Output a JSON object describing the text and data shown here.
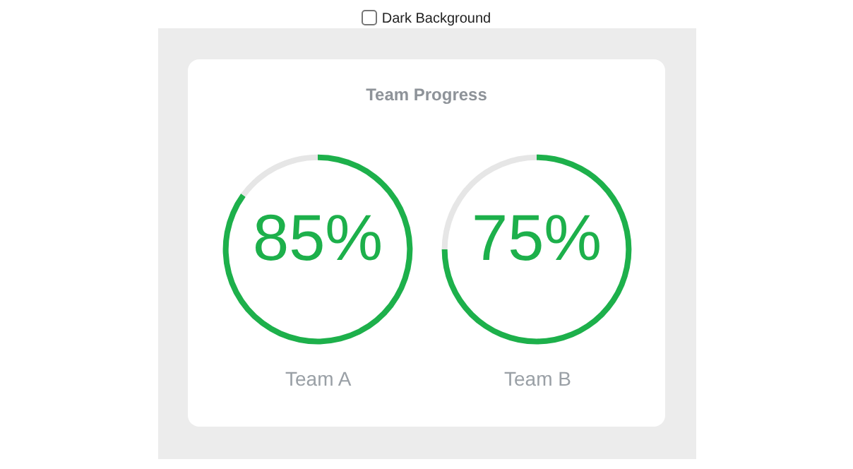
{
  "chart_data": [
    {
      "type": "donut",
      "title": "Team Progress",
      "annotations": [
        "Dark Background"
      ],
      "xlabel": "Team A",
      "categories": [
        null,
        null
      ],
      "values": [
        85,
        15
      ],
      "colors": [
        "#1db04b",
        "#e6e6e6"
      ],
      "value_labels": [
        "85%",
        null
      ]
    },
    {
      "type": "donut",
      "xlabel": "Team B",
      "categories": [
        null,
        null
      ],
      "values": [
        75,
        25
      ],
      "colors": [
        "#1db04b",
        "#e6e6e6"
      ],
      "value_labels": [
        "75%",
        null
      ]
    }
  ]
}
